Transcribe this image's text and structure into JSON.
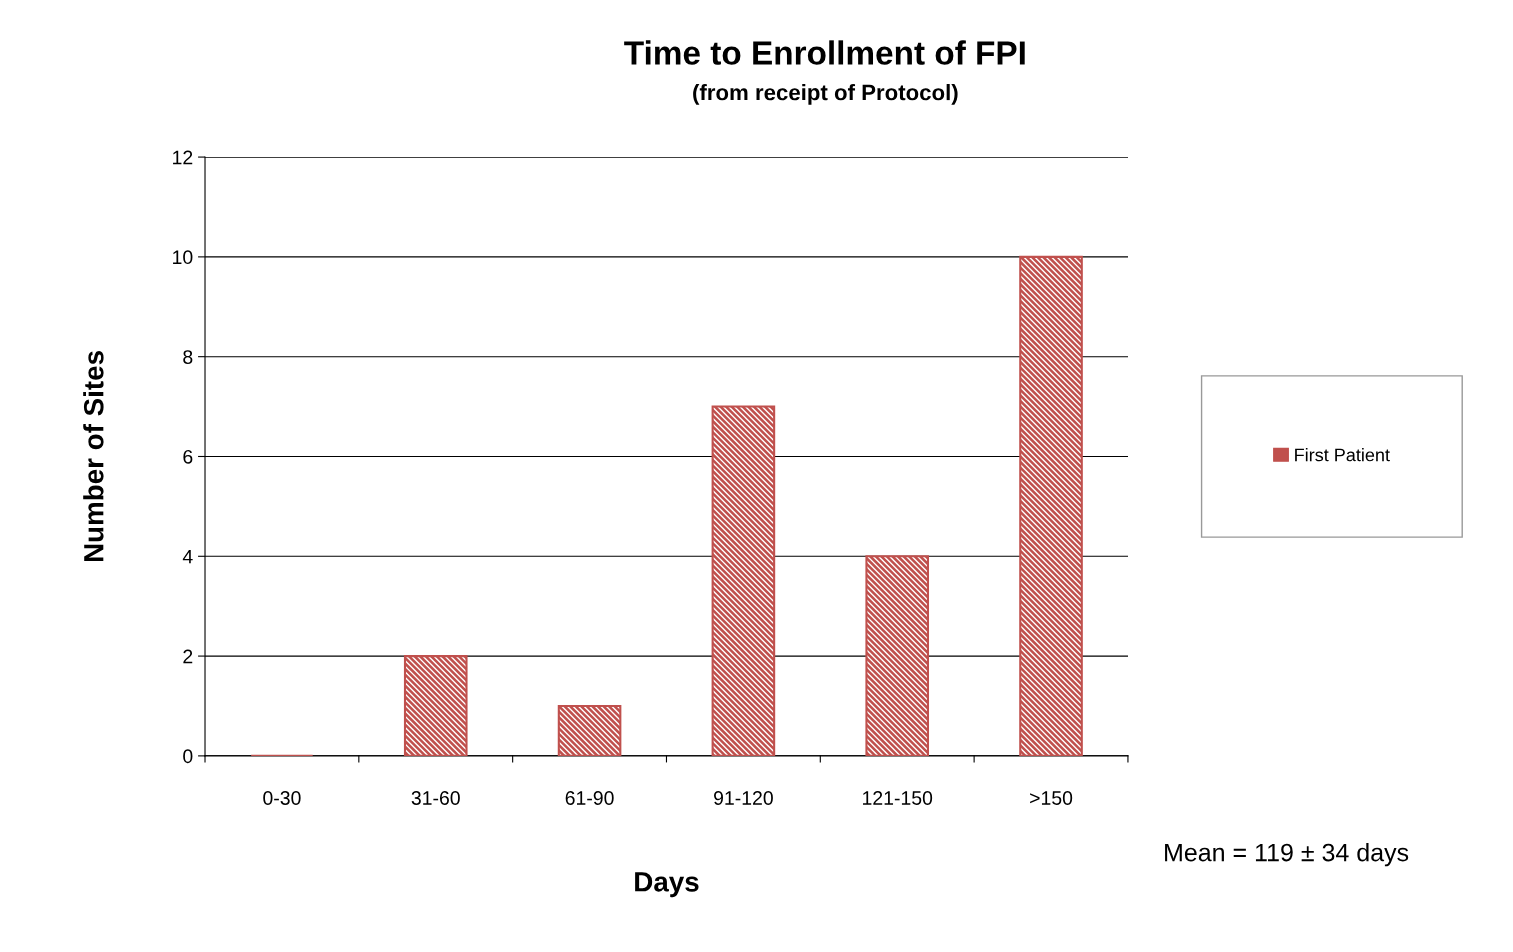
{
  "chart_data": {
    "type": "bar",
    "title": "Time to Enrollment of FPI",
    "subtitle": "(from receipt of Protocol)",
    "xlabel": "Days",
    "ylabel": "Number of Sites",
    "categories": [
      "0-30",
      "31-60",
      "61-90",
      "91-120",
      "121-150",
      ">150"
    ],
    "series": [
      {
        "name": "First Patient",
        "color": "#c0504d",
        "values": [
          0,
          2,
          1,
          7,
          4,
          10
        ]
      }
    ],
    "ylim": [
      0,
      12
    ],
    "yticks": [
      0,
      2,
      4,
      6,
      8,
      10,
      12
    ],
    "grid": "y",
    "legend": "right",
    "annotations": [
      "Mean = 119 ± 34 days"
    ]
  }
}
